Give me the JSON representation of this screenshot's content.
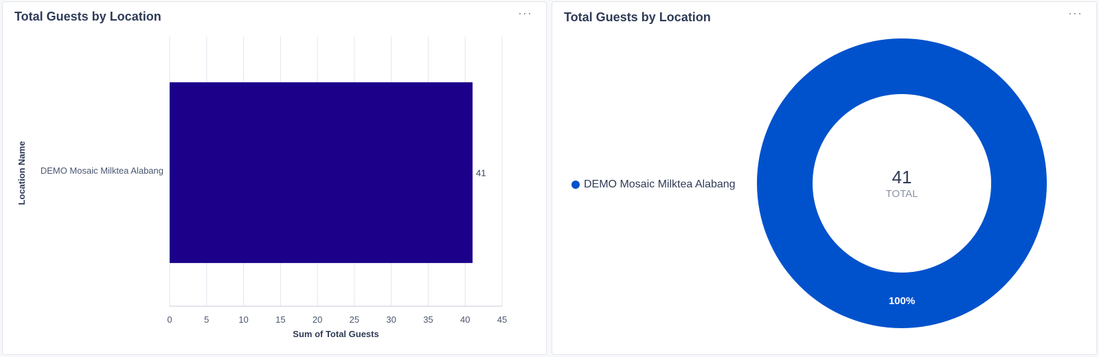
{
  "colors": {
    "bar": "#1d008a",
    "donut": "#0052cc",
    "grid": "#e3e6ec"
  },
  "bar_card": {
    "title": "Total Guests by Location",
    "menu_label": "···"
  },
  "donut_card": {
    "title": "Total Guests by Location",
    "menu_label": "···",
    "center_value": "41",
    "center_label": "TOTAL",
    "slice_label": "100%"
  },
  "chart_data": [
    {
      "type": "bar",
      "orientation": "horizontal",
      "title": "Total Guests by Location",
      "categories": [
        "DEMO Mosaic Milktea Alabang"
      ],
      "values": [
        41
      ],
      "data_labels": [
        "41"
      ],
      "xlabel": "Sum of Total Guests",
      "ylabel": "Location Name",
      "xlim": [
        0,
        45
      ],
      "xticks": [
        "0",
        "5",
        "10",
        "15",
        "20",
        "25",
        "30",
        "35",
        "40",
        "45"
      ],
      "grid": true
    },
    {
      "type": "pie",
      "style": "donut",
      "title": "Total Guests by Location",
      "labels": [
        "DEMO Mosaic Milktea Alabang"
      ],
      "values": [
        41
      ],
      "percentages": [
        "100%"
      ],
      "total": 41,
      "legend": "left"
    }
  ]
}
